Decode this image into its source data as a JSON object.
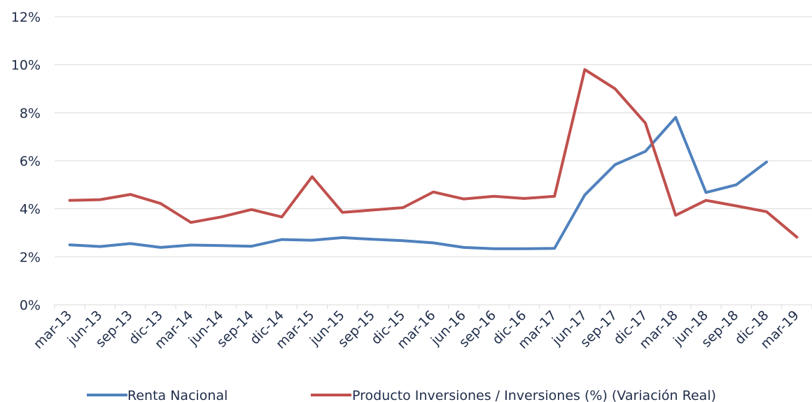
{
  "chart_data": {
    "type": "line",
    "categories": [
      "mar-13",
      "jun-13",
      "sep-13",
      "dic-13",
      "mar-14",
      "jun-14",
      "sep-14",
      "dic-14",
      "mar-15",
      "jun-15",
      "sep-15",
      "dic-15",
      "mar-16",
      "jun-16",
      "sep-16",
      "dic-16",
      "mar-17",
      "jun-17",
      "sep-17",
      "dic-17",
      "mar-18",
      "jun-18",
      "sep-18",
      "dic-18",
      "mar-19"
    ],
    "ylim": [
      0,
      12
    ],
    "yticks": [
      0,
      2,
      4,
      6,
      8,
      10,
      12
    ],
    "ytick_labels": [
      "0%",
      "2%",
      "4%",
      "6%",
      "8%",
      "10%",
      "12%"
    ],
    "grid": true,
    "legend_position": "bottom",
    "series": [
      {
        "name": "Renta Nacional",
        "color": "#4f81bd",
        "values": [
          2.5,
          2.43,
          2.55,
          2.39,
          2.49,
          2.47,
          2.44,
          2.72,
          2.69,
          2.8,
          2.73,
          2.67,
          2.58,
          2.39,
          2.34,
          2.34,
          2.35,
          4.58,
          5.84,
          6.39,
          7.81,
          4.68,
          5.0,
          5.95,
          null
        ]
      },
      {
        "name": "Producto Inversiones / Inversiones (%) (Variación Real)",
        "color": "#c0504d",
        "values": [
          4.35,
          4.38,
          4.6,
          4.22,
          3.43,
          3.66,
          3.97,
          3.66,
          5.34,
          3.85,
          3.95,
          4.05,
          4.7,
          4.41,
          4.52,
          4.43,
          4.52,
          9.8,
          9.0,
          7.57,
          3.73,
          4.35,
          4.12,
          3.88,
          2.82
        ]
      }
    ]
  }
}
